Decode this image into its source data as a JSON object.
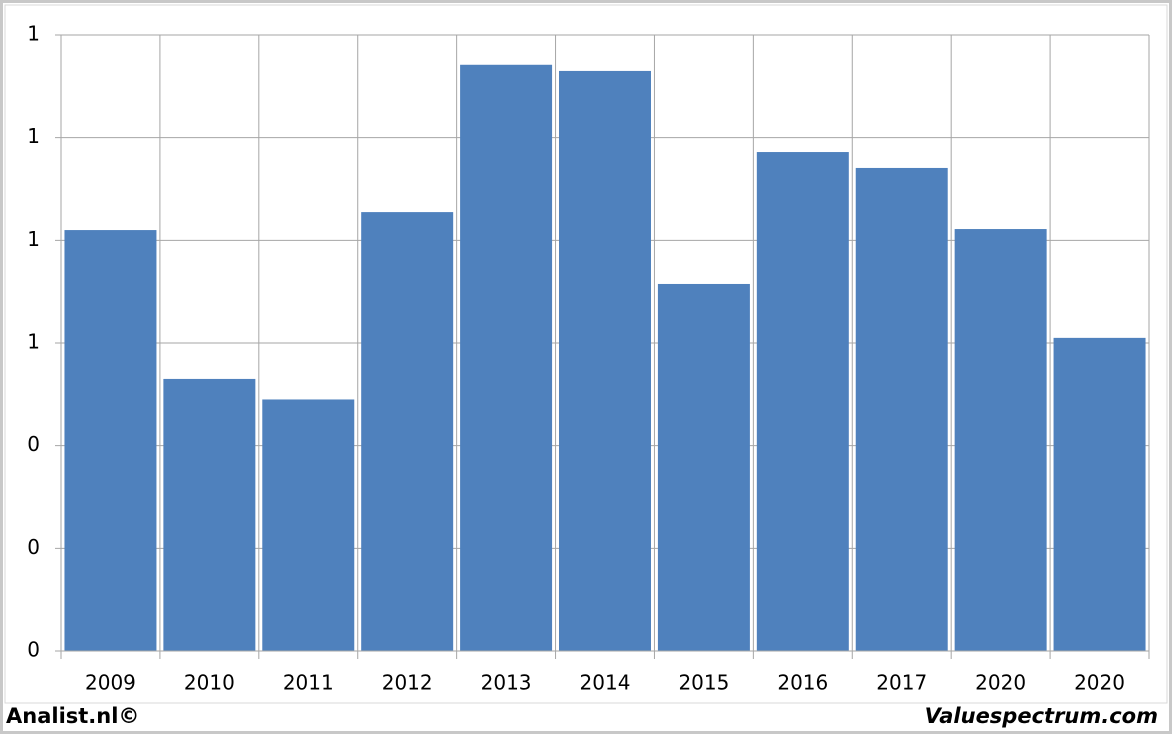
{
  "chart_data": {
    "type": "bar",
    "categories": [
      "2009",
      "2010",
      "2011",
      "2012",
      "2013",
      "2014",
      "2015",
      "2016",
      "2017",
      "2020",
      "2020"
    ],
    "values": [
      0.82,
      0.53,
      0.49,
      0.855,
      1.142,
      1.13,
      0.715,
      0.972,
      0.941,
      0.822,
      0.61
    ],
    "color": "#4f81bd",
    "ylim": [
      0,
      1.2
    ],
    "yticks": [
      0,
      {
        "value": 0.2,
        "label": "0"
      },
      {
        "value": 0.4,
        "label": "0"
      },
      {
        "value": 0.6,
        "label": "1"
      },
      {
        "value": 0.8,
        "label": "1"
      },
      1,
      {
        "value": 1.2,
        "label": "1"
      }
    ],
    "grid": true,
    "footer_left": "Analist.nl©",
    "footer_right": "Valuespectrum.com"
  }
}
